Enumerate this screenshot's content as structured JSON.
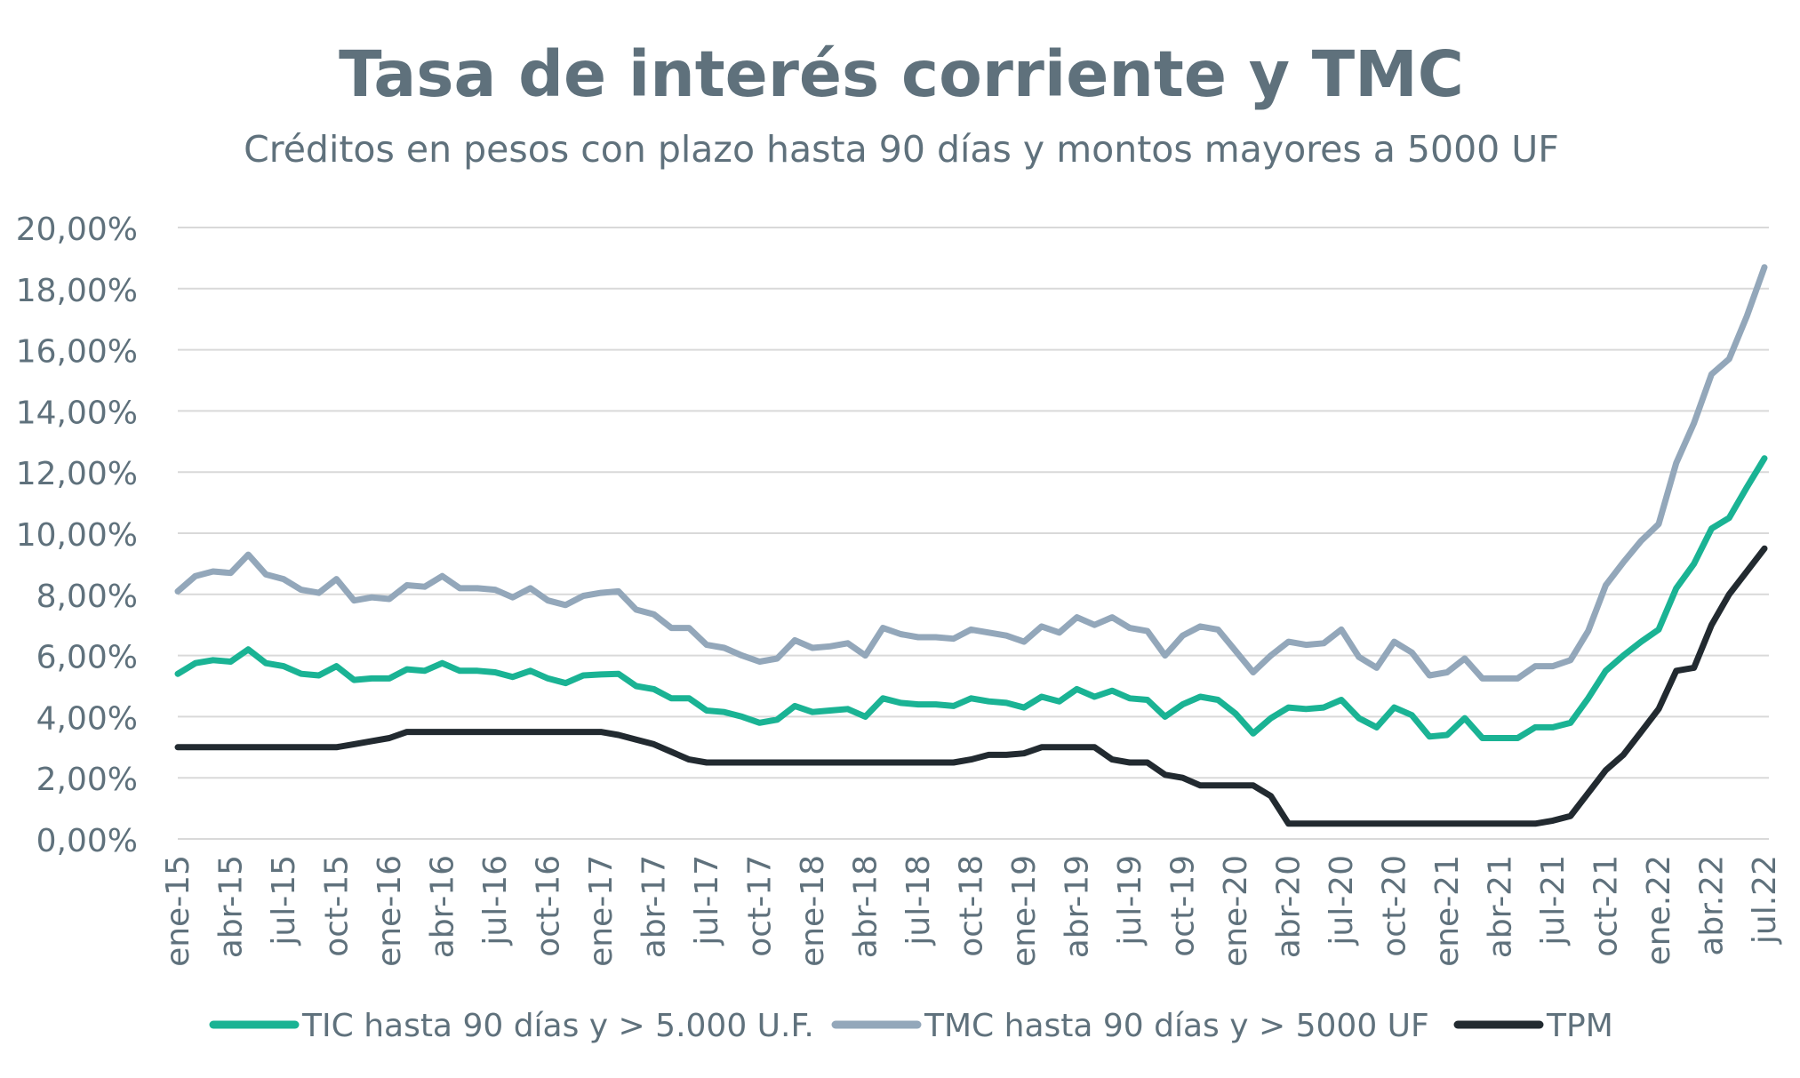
{
  "chart_data": {
    "type": "line",
    "title": "Tasa de interés corriente y TMC",
    "subtitle": "Créditos en pesos con plazo hasta 90 días y montos mayores a 5000 UF",
    "ylim": [
      0,
      20
    ],
    "y_ticks": [
      "0,00%",
      "2,00%",
      "4,00%",
      "6,00%",
      "8,00%",
      "10,00%",
      "12,00%",
      "14,00%",
      "16,00%",
      "18,00%",
      "20,00%"
    ],
    "y_tick_values": [
      0,
      2,
      4,
      6,
      8,
      10,
      12,
      14,
      16,
      18,
      20
    ],
    "x_tick_labels": [
      "ene-15",
      "abr-15",
      "jul-15",
      "oct-15",
      "ene-16",
      "abr-16",
      "jul-16",
      "oct-16",
      "ene-17",
      "abr-17",
      "jul-17",
      "oct-17",
      "ene-18",
      "abr-18",
      "jul-18",
      "oct-18",
      "ene-19",
      "abr-19",
      "jul-19",
      "oct-19",
      "ene-20",
      "abr-20",
      "jul-20",
      "oct-20",
      "ene-21",
      "abr-21",
      "jul-21",
      "oct-21",
      "ene.22",
      "abr.22",
      "jul.22"
    ],
    "x_tick_every": 3,
    "grid": true,
    "legend_position": "bottom",
    "series": [
      {
        "name": "TIC hasta 90 días y > 5.000 U.F.",
        "color": "#1ab394",
        "values": [
          5.4,
          5.75,
          5.85,
          5.8,
          6.2,
          5.75,
          5.65,
          5.4,
          5.35,
          5.65,
          5.2,
          5.25,
          5.25,
          5.55,
          5.5,
          5.75,
          5.5,
          5.5,
          5.45,
          5.3,
          5.5,
          5.25,
          5.1,
          5.35,
          5.38,
          5.4,
          5.0,
          4.9,
          4.6,
          4.6,
          4.2,
          4.15,
          4.0,
          3.8,
          3.9,
          4.35,
          4.15,
          4.2,
          4.25,
          4.0,
          4.6,
          4.45,
          4.4,
          4.4,
          4.35,
          4.6,
          4.5,
          4.45,
          4.3,
          4.65,
          4.5,
          4.9,
          4.65,
          4.85,
          4.6,
          4.55,
          4.0,
          4.4,
          4.65,
          4.55,
          4.1,
          3.45,
          3.95,
          4.3,
          4.25,
          4.3,
          4.55,
          3.95,
          3.65,
          4.3,
          4.05,
          3.35,
          3.4,
          3.95,
          3.3,
          3.3,
          3.3,
          3.65,
          3.65,
          3.8,
          4.6,
          5.5,
          6.0,
          6.45,
          6.85,
          8.2,
          9.0,
          10.15,
          10.5,
          11.5,
          12.45
        ]
      },
      {
        "name": "TMC hasta 90 días y > 5000 UF",
        "color": "#93a7ba",
        "values": [
          8.1,
          8.6,
          8.75,
          8.7,
          9.3,
          8.65,
          8.5,
          8.15,
          8.05,
          8.5,
          7.8,
          7.9,
          7.85,
          8.3,
          8.25,
          8.6,
          8.2,
          8.2,
          8.15,
          7.9,
          8.2,
          7.8,
          7.65,
          7.95,
          8.05,
          8.1,
          7.5,
          7.35,
          6.9,
          6.9,
          6.35,
          6.25,
          6.0,
          5.8,
          5.9,
          6.5,
          6.25,
          6.3,
          6.4,
          6.0,
          6.9,
          6.7,
          6.6,
          6.6,
          6.55,
          6.85,
          6.75,
          6.65,
          6.45,
          6.95,
          6.75,
          7.25,
          7.0,
          7.25,
          6.9,
          6.8,
          6.0,
          6.65,
          6.95,
          6.85,
          6.15,
          5.45,
          6.0,
          6.45,
          6.35,
          6.4,
          6.85,
          5.95,
          5.6,
          6.45,
          6.1,
          5.35,
          5.45,
          5.9,
          5.25,
          5.25,
          5.25,
          5.65,
          5.65,
          5.85,
          6.8,
          8.3,
          9.05,
          9.75,
          10.3,
          12.3,
          13.6,
          15.2,
          15.7,
          17.1,
          18.7
        ]
      },
      {
        "name": "TPM",
        "color": "#222a30",
        "values": [
          3.0,
          3.0,
          3.0,
          3.0,
          3.0,
          3.0,
          3.0,
          3.0,
          3.0,
          3.0,
          3.1,
          3.2,
          3.3,
          3.5,
          3.5,
          3.5,
          3.5,
          3.5,
          3.5,
          3.5,
          3.5,
          3.5,
          3.5,
          3.5,
          3.5,
          3.4,
          3.25,
          3.1,
          2.85,
          2.6,
          2.5,
          2.5,
          2.5,
          2.5,
          2.5,
          2.5,
          2.5,
          2.5,
          2.5,
          2.5,
          2.5,
          2.5,
          2.5,
          2.5,
          2.5,
          2.6,
          2.75,
          2.75,
          2.8,
          3.0,
          3.0,
          3.0,
          3.0,
          2.6,
          2.5,
          2.5,
          2.1,
          2.0,
          1.75,
          1.75,
          1.75,
          1.75,
          1.4,
          0.5,
          0.5,
          0.5,
          0.5,
          0.5,
          0.5,
          0.5,
          0.5,
          0.5,
          0.5,
          0.5,
          0.5,
          0.5,
          0.5,
          0.5,
          0.6,
          0.75,
          1.5,
          2.25,
          2.75,
          3.5,
          4.25,
          5.5,
          5.6,
          7.0,
          8.0,
          8.75,
          9.5
        ]
      }
    ]
  }
}
